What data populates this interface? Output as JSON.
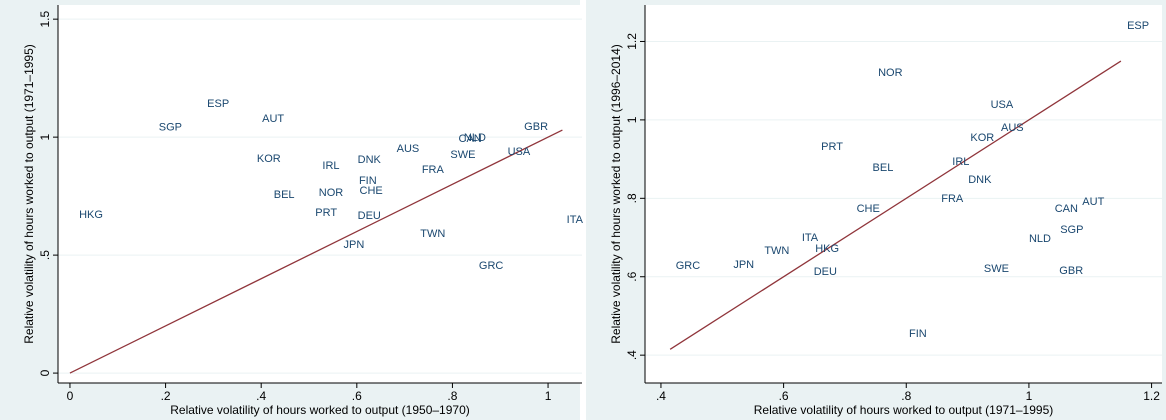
{
  "chart_data": [
    {
      "type": "scatter",
      "x_label": "Relative volatility of hours worked to output (1950–1970)",
      "y_label": "Relative volatility of hours worked to output (1971–1995)",
      "labels": [
        "HKG",
        "SGP",
        "ESP",
        "AUT",
        "KOR",
        "IRL",
        "DNK",
        "AUS",
        "FRA",
        "FIN",
        "CHE",
        "BEL",
        "NOR",
        "PRT",
        "DEU",
        "JPN",
        "TWN",
        "GRC",
        "SWE",
        "CAN",
        "NLD",
        "USA",
        "GBR",
        "ITA"
      ],
      "x": [
        0.044,
        0.21,
        0.31,
        0.425,
        0.416,
        0.546,
        0.626,
        0.707,
        0.759,
        0.623,
        0.63,
        0.448,
        0.546,
        0.536,
        0.626,
        0.594,
        0.759,
        0.881,
        0.822,
        0.837,
        0.847,
        0.939,
        0.975,
        1.056
      ],
      "y": [
        0.67,
        1.04,
        1.14,
        1.076,
        0.907,
        0.877,
        0.903,
        0.949,
        0.86,
        0.814,
        0.771,
        0.754,
        0.763,
        0.678,
        0.665,
        0.542,
        0.589,
        0.453,
        0.924,
        0.992,
        0.996,
        0.936,
        1.042,
        0.648
      ],
      "color": "#1a476f",
      "line": {
        "x": [
          0,
          1.03
        ],
        "y": [
          0,
          1.03
        ],
        "color": "#90353b"
      },
      "xlim": [
        -0.025,
        1.071
      ],
      "ylim": [
        -0.042,
        1.56
      ],
      "xticks": [
        0,
        {
          "value": 0.2,
          "label": ".2"
        },
        {
          "value": 0.4,
          "label": ".4"
        },
        {
          "value": 0.6,
          "label": ".6"
        },
        {
          "value": 0.8,
          "label": ".8"
        },
        1
      ],
      "yticks": [
        0,
        {
          "value": 0.5,
          "label": ".5"
        },
        1,
        1.5
      ],
      "grid": true
    },
    {
      "type": "scatter",
      "x_label": "Relative volatility of hours worked to output (1971–1995)",
      "y_label": "Relative volatility of hours worked to output (1996–2014)",
      "labels": [
        "ESP",
        "NOR",
        "USA",
        "AUS",
        "KOR",
        "PRT",
        "IRL",
        "BEL",
        "DNK",
        "FRA",
        "CHE",
        "CAN",
        "AUT",
        "SGP",
        "NLD",
        "ITA",
        "HKG",
        "TWN",
        "JPN",
        "GRC",
        "DEU",
        "SWE",
        "GBR",
        "FIN"
      ],
      "x": [
        1.178,
        0.774,
        0.956,
        0.973,
        0.924,
        0.679,
        0.889,
        0.762,
        0.92,
        0.875,
        0.738,
        1.061,
        1.105,
        1.07,
        1.018,
        0.643,
        0.671,
        0.589,
        0.535,
        0.444,
        0.668,
        0.947,
        1.069,
        0.819
      ],
      "y": [
        1.239,
        1.119,
        1.038,
        0.979,
        0.954,
        0.931,
        0.892,
        0.877,
        0.846,
        0.798,
        0.772,
        0.772,
        0.79,
        0.719,
        0.696,
        0.698,
        0.67,
        0.665,
        0.63,
        0.627,
        0.612,
        0.619,
        0.614,
        0.454
      ],
      "color": "#1a476f",
      "line": {
        "x": [
          0.415,
          1.15
        ],
        "y": [
          0.415,
          1.15
        ],
        "color": "#90353b"
      },
      "xlim": [
        0.374,
        1.217
      ],
      "ylim": [
        0.329,
        1.293
      ],
      "xticks": [
        {
          "value": 0.4,
          "label": ".4"
        },
        {
          "value": 0.6,
          "label": ".6"
        },
        {
          "value": 0.8,
          "label": ".8"
        },
        1,
        {
          "value": 1.2,
          "label": "1.2"
        }
      ],
      "yticks": [
        {
          "value": 0.4,
          "label": ".4"
        },
        {
          "value": 0.6,
          "label": ".6"
        },
        {
          "value": 0.8,
          "label": ".8"
        },
        1,
        {
          "value": 1.2,
          "label": "1.2"
        }
      ],
      "grid": true
    }
  ]
}
